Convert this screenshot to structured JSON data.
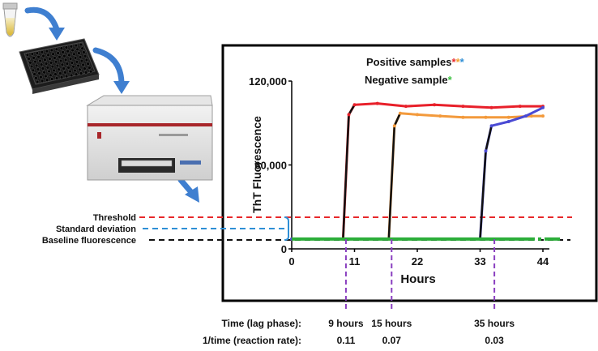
{
  "legend": {
    "positive_label": "Positive samples",
    "negative_label": "Negative sample",
    "star": "*"
  },
  "left_labels": {
    "threshold": "Threshold",
    "std_dev": "Standard deviation",
    "baseline": "Baseline fluorescence"
  },
  "bottom": {
    "time_label": "Time (lag phase):",
    "rate_label": "1/time (reaction rate):",
    "lag_times": [
      "9 hours",
      "15 hours",
      "35 hours"
    ],
    "rates": [
      "0.11",
      "0.07",
      "0.03"
    ]
  },
  "colors": {
    "threshold": "#e8282b",
    "std_dev": "#2e8fd6",
    "baseline": "#111111",
    "red_series": "#e8202a",
    "orange_series": "#f39a3c",
    "blue_series": "#4a4ad4",
    "green_series": "#2cae3a",
    "lag_marker": "#8a3fc0",
    "arrow": "#3f7fd0",
    "star_red": "#e8282b",
    "star_orange": "#f0a030",
    "star_blue": "#2e8fd6",
    "star_green": "#3cc040"
  },
  "icons": [
    "sample-tube-icon",
    "microplate-icon",
    "plate-reader-icon",
    "curved-arrow-icon"
  ],
  "chart_data": {
    "type": "line",
    "xlabel": "Hours",
    "ylabel": "ThT Fluorescence",
    "xticks": [
      0,
      11,
      22,
      33,
      44
    ],
    "yticks": [
      "0",
      "60,000",
      "120,000"
    ],
    "ytick_values": [
      0,
      60000,
      120000
    ],
    "xlim": [
      0,
      44
    ],
    "ylim": [
      0,
      120000
    ],
    "baseline": 7000,
    "series": [
      {
        "color_key": "red_series",
        "x": [
          0,
          9,
          10,
          11,
          15,
          20,
          25,
          30,
          35,
          40,
          44
        ],
        "y": [
          7000,
          7000,
          96000,
          103000,
          104000,
          102000,
          103000,
          102000,
          101000,
          102000,
          102000
        ]
      },
      {
        "color_key": "orange_series",
        "x": [
          0,
          17,
          18,
          19,
          22,
          26,
          30,
          34,
          38,
          42,
          44
        ],
        "y": [
          7000,
          7000,
          88000,
          97000,
          96000,
          95000,
          94000,
          94000,
          94000,
          95000,
          95000
        ]
      },
      {
        "color_key": "blue_series",
        "x": [
          0,
          33,
          34,
          35,
          38,
          41,
          44
        ],
        "y": [
          7000,
          7000,
          70000,
          88000,
          91000,
          95000,
          101000
        ]
      },
      {
        "color_key": "green_series",
        "x": [
          0,
          44,
          47
        ],
        "y": [
          7000,
          7000,
          7000
        ]
      }
    ]
  }
}
